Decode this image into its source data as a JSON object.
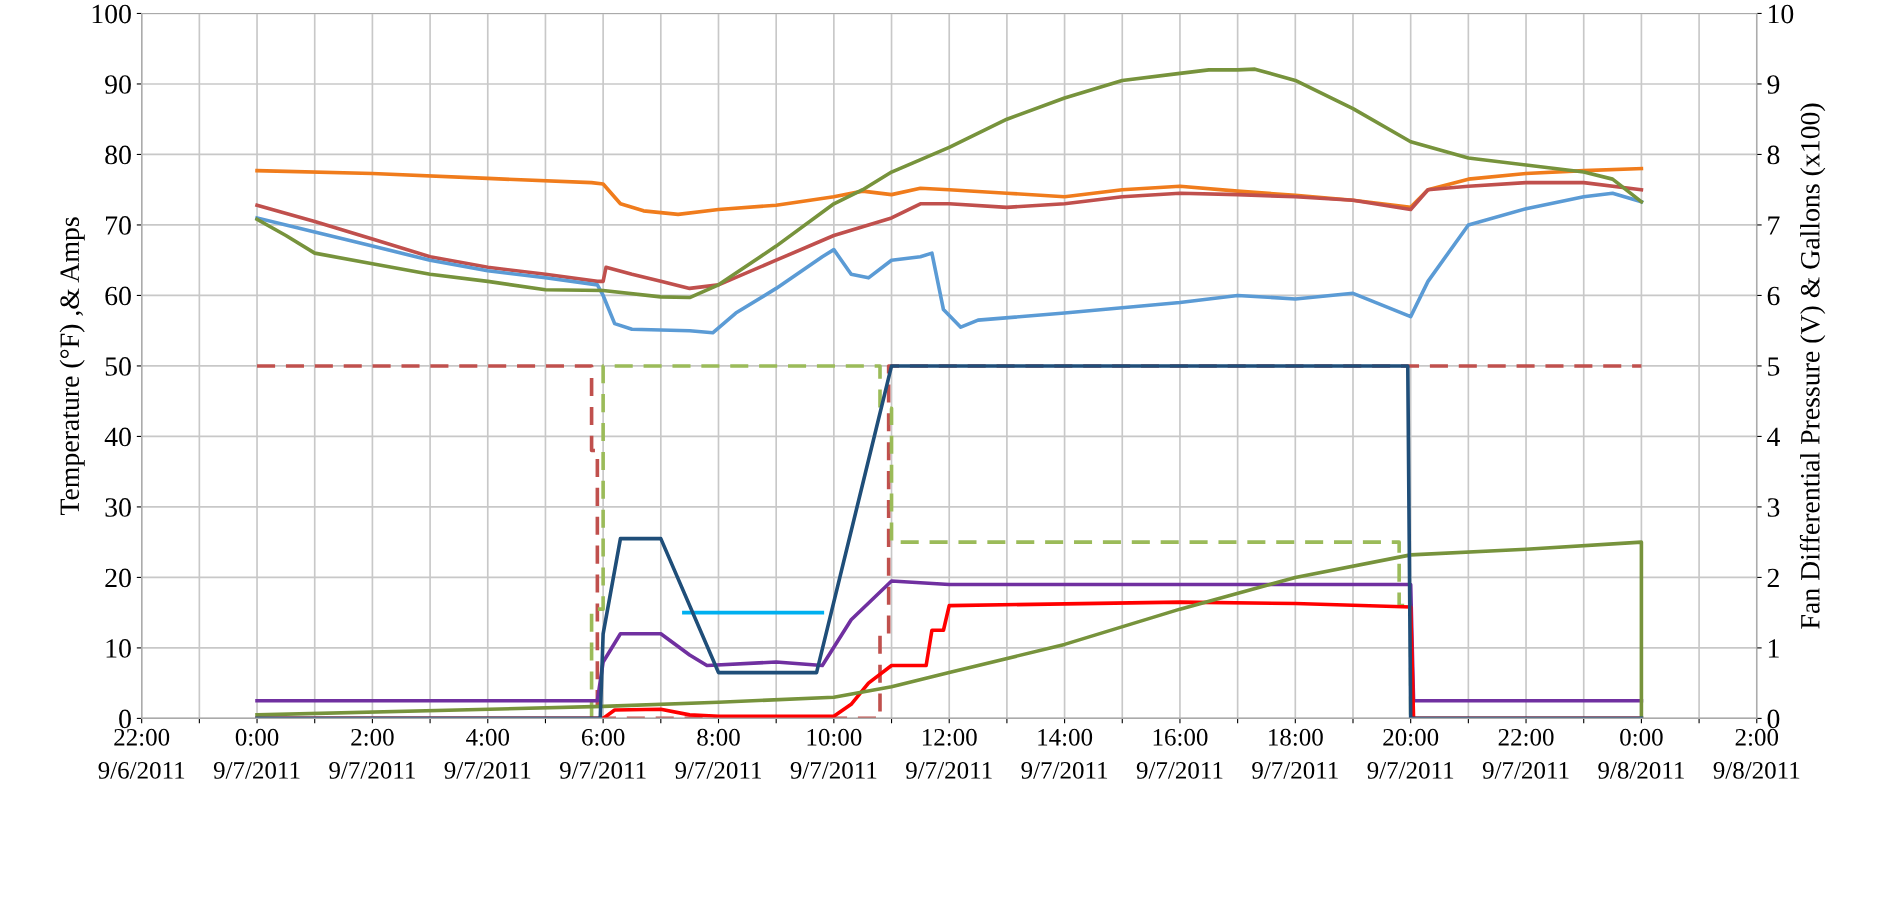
{
  "chart_data": {
    "type": "line",
    "ylabel": "Temperature (°F) ,& Amps",
    "y2label": "Fan Differential Pressure (V) & Gallons (x100)",
    "xlim": [
      "2011-09-06T22:00",
      "2011-09-08T02:00"
    ],
    "ylim": [
      0,
      100
    ],
    "y2lim": [
      0,
      10
    ],
    "xticks": [
      {
        "value": "2011-09-06T22:00",
        "label": "22:00\n9/6/2011"
      },
      {
        "value": "2011-09-06T23:00",
        "label": null
      },
      {
        "value": "2011-09-07T00:00",
        "label": "0:00\n9/7/2011"
      },
      {
        "value": "2011-09-07T01:00",
        "label": null
      },
      {
        "value": "2011-09-07T02:00",
        "label": "2:00\n9/7/2011"
      },
      {
        "value": "2011-09-07T03:00",
        "label": null
      },
      {
        "value": "2011-09-07T04:00",
        "label": "4:00\n9/7/2011"
      },
      {
        "value": "2011-09-07T05:00",
        "label": null
      },
      {
        "value": "2011-09-07T06:00",
        "label": "6:00\n9/7/2011"
      },
      {
        "value": "2011-09-07T07:00",
        "label": null
      },
      {
        "value": "2011-09-07T08:00",
        "label": "8:00\n9/7/2011"
      },
      {
        "value": "2011-09-07T09:00",
        "label": null
      },
      {
        "value": "2011-09-07T10:00",
        "label": "10:00\n9/7/2011"
      },
      {
        "value": "2011-09-07T11:00",
        "label": null
      },
      {
        "value": "2011-09-07T12:00",
        "label": "12:00\n9/7/2011"
      },
      {
        "value": "2011-09-07T13:00",
        "label": null
      },
      {
        "value": "2011-09-07T14:00",
        "label": "14:00\n9/7/2011"
      },
      {
        "value": "2011-09-07T15:00",
        "label": null
      },
      {
        "value": "2011-09-07T16:00",
        "label": "16:00\n9/7/2011"
      },
      {
        "value": "2011-09-07T17:00",
        "label": null
      },
      {
        "value": "2011-09-07T18:00",
        "label": "18:00\n9/7/2011"
      },
      {
        "value": "2011-09-07T19:00",
        "label": null
      },
      {
        "value": "2011-09-07T20:00",
        "label": "20:00\n9/7/2011"
      },
      {
        "value": "2011-09-07T21:00",
        "label": null
      },
      {
        "value": "2011-09-07T22:00",
        "label": "22:00\n9/7/2011"
      },
      {
        "value": "2011-09-07T23:00",
        "label": null
      },
      {
        "value": "2011-09-08T00:00",
        "label": "0:00\n9/8/2011"
      },
      {
        "value": "2011-09-08T01:00",
        "label": null
      },
      {
        "value": "2011-09-08T02:00",
        "label": "2:00\n9/8/2011"
      }
    ],
    "yticks": [
      0,
      10,
      20,
      30,
      40,
      50,
      60,
      70,
      80,
      90,
      100
    ],
    "y2ticks": [
      0,
      1,
      2,
      3,
      4,
      5,
      6,
      7,
      8,
      9,
      10
    ],
    "grid": true,
    "legend": false,
    "marker": "none",
    "line_style": "solid",
    "series": [
      {
        "color": "#f07c1c",
        "x": [
          "2011-09-07T00:00",
          "2011-09-07T02:00",
          "2011-09-07T04:00",
          "2011-09-07T05:48",
          "2011-09-07T06:00",
          "2011-09-07T06:18",
          "2011-09-07T06:42",
          "2011-09-07T07:18",
          "2011-09-07T08:00",
          "2011-09-07T09:00",
          "2011-09-07T10:00",
          "2011-09-07T10:30",
          "2011-09-07T11:00",
          "2011-09-07T11:30",
          "2011-09-07T12:00",
          "2011-09-07T13:00",
          "2011-09-07T14:00",
          "2011-09-07T15:00",
          "2011-09-07T16:00",
          "2011-09-07T17:00",
          "2011-09-07T18:00",
          "2011-09-07T19:00",
          "2011-09-07T20:00",
          "2011-09-07T20:18",
          "2011-09-07T21:00",
          "2011-09-07T22:00",
          "2011-09-07T23:00",
          "2011-09-08T00:00"
        ],
        "values": [
          77.7,
          77.3,
          76.6,
          76,
          75.8,
          73,
          72,
          71.5,
          72.2,
          72.8,
          74,
          74.8,
          74.3,
          75.2,
          75,
          74.5,
          74,
          75,
          75.5,
          74.8,
          74.2,
          73.5,
          72.5,
          75,
          76.5,
          77.3,
          77.7,
          78
        ]
      },
      {
        "color": "#c0504d",
        "x": [
          "2011-09-07T00:00",
          "2011-09-07T01:00",
          "2011-09-07T02:00",
          "2011-09-07T03:00",
          "2011-09-07T04:00",
          "2011-09-07T05:00",
          "2011-09-07T05:54",
          "2011-09-07T06:00",
          "2011-09-07T06:03",
          "2011-09-07T06:30",
          "2011-09-07T07:00",
          "2011-09-07T07:30",
          "2011-09-07T08:00",
          "2011-09-07T09:00",
          "2011-09-07T10:00",
          "2011-09-07T11:00",
          "2011-09-07T11:30",
          "2011-09-07T12:00",
          "2011-09-07T13:00",
          "2011-09-07T14:00",
          "2011-09-07T15:00",
          "2011-09-07T16:00",
          "2011-09-07T17:00",
          "2011-09-07T18:00",
          "2011-09-07T19:00",
          "2011-09-07T20:00",
          "2011-09-07T20:18",
          "2011-09-07T21:00",
          "2011-09-07T22:00",
          "2011-09-07T23:00",
          "2011-09-08T00:00"
        ],
        "values": [
          72.8,
          70.5,
          68,
          65.5,
          64,
          63,
          62,
          62,
          64,
          63,
          62,
          61,
          61.5,
          65,
          68.5,
          71,
          73,
          73,
          72.5,
          73,
          74,
          74.5,
          74.3,
          74,
          73.5,
          72.2,
          75,
          75.5,
          76,
          76,
          75
        ]
      },
      {
        "color": "#5b9bd5",
        "x": [
          "2011-09-07T00:00",
          "2011-09-07T01:00",
          "2011-09-07T02:00",
          "2011-09-07T03:00",
          "2011-09-07T04:00",
          "2011-09-07T05:00",
          "2011-09-07T05:54",
          "2011-09-07T06:00",
          "2011-09-07T06:12",
          "2011-09-07T06:30",
          "2011-09-07T07:30",
          "2011-09-07T07:54",
          "2011-09-07T08:18",
          "2011-09-07T09:00",
          "2011-09-07T09:48",
          "2011-09-07T10:00",
          "2011-09-07T10:18",
          "2011-09-07T10:36",
          "2011-09-07T11:00",
          "2011-09-07T11:30",
          "2011-09-07T11:42",
          "2011-09-07T11:54",
          "2011-09-07T12:12",
          "2011-09-07T12:30",
          "2011-09-07T14:00",
          "2011-09-07T16:00",
          "2011-09-07T17:00",
          "2011-09-07T18:00",
          "2011-09-07T19:00",
          "2011-09-07T20:00",
          "2011-09-07T20:18",
          "2011-09-07T21:00",
          "2011-09-07T22:00",
          "2011-09-07T23:00",
          "2011-09-07T23:30",
          "2011-09-08T00:00"
        ],
        "values": [
          71,
          69,
          67,
          65,
          63.5,
          62.5,
          61.5,
          60,
          56,
          55.2,
          55,
          54.7,
          57.5,
          61,
          65.5,
          66.5,
          63,
          62.5,
          65,
          65.5,
          66,
          58,
          55.5,
          56.5,
          57.5,
          59,
          60,
          59.5,
          60.3,
          57,
          62,
          70,
          72.3,
          74,
          74.5,
          73.3
        ]
      },
      {
        "color": "#77933c",
        "x": [
          "2011-09-07T00:00",
          "2011-09-07T00:30",
          "2011-09-07T01:00",
          "2011-09-07T02:00",
          "2011-09-07T03:00",
          "2011-09-07T04:00",
          "2011-09-07T05:00",
          "2011-09-07T06:00",
          "2011-09-07T07:00",
          "2011-09-07T07:30",
          "2011-09-07T08:00",
          "2011-09-07T09:00",
          "2011-09-07T10:00",
          "2011-09-07T10:30",
          "2011-09-07T11:00",
          "2011-09-07T12:00",
          "2011-09-07T13:00",
          "2011-09-07T14:00",
          "2011-09-07T15:00",
          "2011-09-07T16:00",
          "2011-09-07T16:30",
          "2011-09-07T17:00",
          "2011-09-07T17:18",
          "2011-09-07T18:00",
          "2011-09-07T19:00",
          "2011-09-07T20:00",
          "2011-09-07T21:00",
          "2011-09-07T22:00",
          "2011-09-07T23:00",
          "2011-09-07T23:30",
          "2011-09-08T00:00"
        ],
        "values": [
          70.8,
          68.5,
          66,
          64.5,
          63,
          62,
          60.8,
          60.7,
          59.8,
          59.7,
          61.5,
          67,
          73,
          75,
          77.5,
          81,
          85,
          88,
          90.5,
          91.5,
          92,
          92,
          92.1,
          90.5,
          86.5,
          81.8,
          79.5,
          78.5,
          77.5,
          76.5,
          73.3
        ]
      },
      {
        "color": "#c0504d",
        "line_style": "dashed",
        "x": [
          "2011-09-07T00:00",
          "2011-09-07T05:48",
          "2011-09-07T05:48",
          "2011-09-07T05:54",
          "2011-09-07T05:54",
          "2011-09-07T10:48",
          "2011-09-07T10:48",
          "2011-09-07T10:57",
          "2011-09-07T10:57",
          "2011-09-08T00:00"
        ],
        "values": [
          50,
          50,
          38,
          38,
          0,
          0,
          12,
          12,
          50,
          50
        ]
      },
      {
        "color": "#9bbb59",
        "line_style": "dashed",
        "x": [
          "2011-09-07T05:48",
          "2011-09-07T05:48",
          "2011-09-07T06:00",
          "2011-09-07T06:00",
          "2011-09-07T10:48",
          "2011-09-07T10:48",
          "2011-09-07T11:00",
          "2011-09-07T11:00",
          "2011-09-07T19:48",
          "2011-09-07T19:48",
          "2011-09-07T20:00",
          "2011-09-07T20:00"
        ],
        "values": [
          0,
          15.5,
          15.5,
          50,
          50,
          44,
          44,
          25,
          25,
          16,
          16,
          0
        ]
      },
      {
        "color": "#00b0f0",
        "x": [
          "2011-09-07T07:24",
          "2011-09-07T09:48"
        ],
        "values": [
          15,
          15
        ]
      },
      {
        "color": "#7030a0",
        "x": [
          "2011-09-07T00:00",
          "2011-09-07T05:54",
          "2011-09-07T06:00",
          "2011-09-07T06:18",
          "2011-09-07T07:00",
          "2011-09-07T07:30",
          "2011-09-07T07:48",
          "2011-09-07T09:00",
          "2011-09-07T09:48",
          "2011-09-07T10:18",
          "2011-09-07T11:00",
          "2011-09-07T12:00",
          "2011-09-07T20:00",
          "2011-09-07T20:03",
          "2011-09-08T00:00"
        ],
        "values": [
          2.5,
          2.5,
          8,
          12,
          12,
          9,
          7.5,
          8,
          7.5,
          14,
          19.5,
          19,
          19,
          2.5,
          2.5
        ]
      },
      {
        "color": "#ff0000",
        "x": [
          "2011-09-07T00:00",
          "2011-09-07T06:00",
          "2011-09-07T06:12",
          "2011-09-07T07:00",
          "2011-09-07T07:30",
          "2011-09-07T08:00",
          "2011-09-07T10:00",
          "2011-09-07T10:18",
          "2011-09-07T10:36",
          "2011-09-07T11:00",
          "2011-09-07T11:36",
          "2011-09-07T11:42",
          "2011-09-07T11:54",
          "2011-09-07T12:00",
          "2011-09-07T16:00",
          "2011-09-07T18:00",
          "2011-09-07T20:00",
          "2011-09-07T20:03",
          "2011-09-08T00:00"
        ],
        "values": [
          0,
          0,
          1.2,
          1.3,
          0.5,
          0.3,
          0.3,
          2,
          5,
          7.5,
          7.5,
          12.5,
          12.5,
          16,
          16.5,
          16.3,
          15.8,
          0,
          0
        ]
      },
      {
        "color": "#77933c",
        "x": [
          "2011-09-07T00:00",
          "2011-09-07T06:00",
          "2011-09-07T08:00",
          "2011-09-07T10:00",
          "2011-09-07T11:00",
          "2011-09-07T12:00",
          "2011-09-07T14:00",
          "2011-09-07T16:00",
          "2011-09-07T18:00",
          "2011-09-07T20:00",
          "2011-09-07T22:00",
          "2011-09-08T00:00",
          "2011-09-08T00:00"
        ],
        "values": [
          0.5,
          1.7,
          2.3,
          3,
          4.5,
          6.5,
          10.5,
          15.5,
          20,
          23.2,
          24,
          25,
          0
        ]
      },
      {
        "color": "#1f4e79",
        "x": [
          "2011-09-07T00:00",
          "2011-09-07T05:57",
          "2011-09-07T06:00",
          "2011-09-07T06:18",
          "2011-09-07T07:00",
          "2011-09-07T08:00",
          "2011-09-07T09:42",
          "2011-09-07T11:00",
          "2011-09-07T19:57",
          "2011-09-07T20:00",
          "2011-09-08T00:00"
        ],
        "values": [
          0,
          0,
          12,
          25.5,
          25.5,
          6.5,
          6.5,
          50,
          50,
          0,
          0
        ]
      }
    ]
  }
}
